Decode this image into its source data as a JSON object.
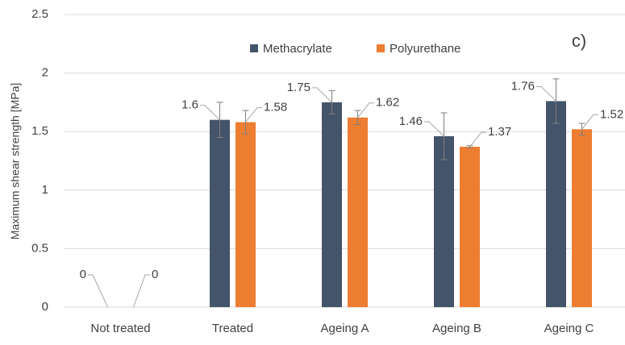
{
  "chart_data": {
    "type": "bar",
    "annotation": "c)",
    "y_label": "Maximum shear strength [MPa]",
    "categories": [
      "Not treated",
      "Treated",
      "Ageing A",
      "Ageing B",
      "Ageing C"
    ],
    "series": [
      {
        "name": "Methacrylate",
        "color": "#44546a",
        "values": [
          0,
          1.6,
          1.75,
          1.46,
          1.76
        ],
        "errors": [
          0,
          0.15,
          0.1,
          0.2,
          0.19
        ]
      },
      {
        "name": "Polyurethane",
        "color": "#ed7d31",
        "values": [
          0,
          1.58,
          1.62,
          1.37,
          1.52
        ],
        "errors": [
          0,
          0.1,
          0.06,
          0.01,
          0.05
        ]
      }
    ],
    "ylim": [
      0,
      2.5
    ],
    "yticks": [
      0,
      0.5,
      1,
      1.5,
      2,
      2.5
    ],
    "grid": true,
    "legend": "top"
  }
}
